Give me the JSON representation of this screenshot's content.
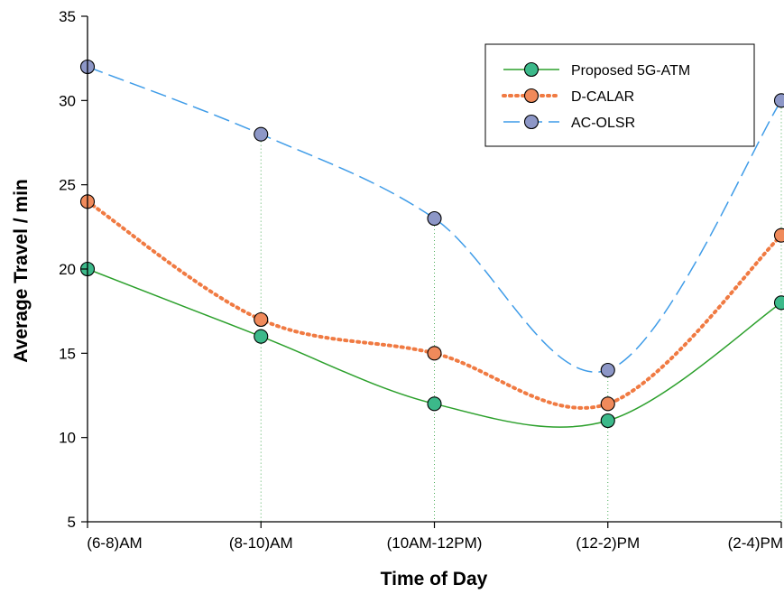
{
  "chart_data": {
    "type": "line",
    "xlabel": "Time of Day",
    "ylabel": "Average Travel / min",
    "categories": [
      "(6-8)AM",
      "(8-10)AM",
      "(10AM-12PM)",
      "(12-2)PM",
      "(2-4)PM"
    ],
    "ylim": [
      5,
      35
    ],
    "yticks": [
      5,
      10,
      15,
      20,
      25,
      30,
      35
    ],
    "grid": "vertical dotted drop lines at each category",
    "legend_position": "top-right",
    "series": [
      {
        "name": "Proposed 5G-ATM",
        "values": [
          20,
          16,
          12,
          11,
          18
        ],
        "line_color": "#2ca02c",
        "marker_color": "#3cb98a",
        "line_style": "solid"
      },
      {
        "name": "D-CALAR",
        "values": [
          24,
          17,
          15,
          12,
          22
        ],
        "line_color": "#f07a42",
        "marker_color": "#f08a5b",
        "line_style": "dotted"
      },
      {
        "name": "AC-OLSR",
        "values": [
          32,
          28,
          23,
          14,
          30
        ],
        "line_color": "#3f9ce8",
        "marker_color": "#8d97c7",
        "line_style": "dashed"
      }
    ]
  }
}
